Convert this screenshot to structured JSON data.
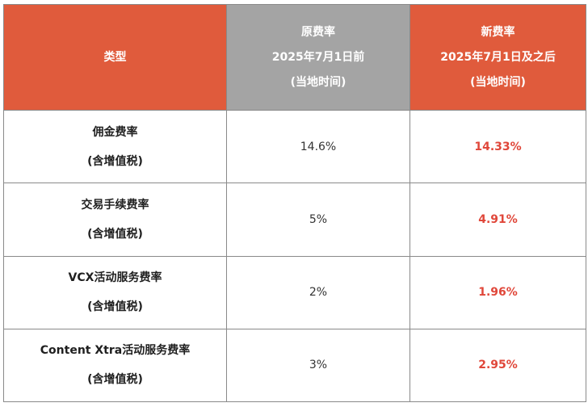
{
  "header": {
    "type_label": "类型",
    "old": {
      "title": "原费率",
      "date": "2025年7月1日前",
      "note": "(当地时间)"
    },
    "new": {
      "title": "新费率",
      "date": "2025年7月1日及之后",
      "note": "(当地时间)"
    }
  },
  "rows": [
    {
      "name": "佣金费率",
      "tax": "(含增值税)",
      "old_rate": "14.6%",
      "new_rate": "14.33%"
    },
    {
      "name": "交易手续费率",
      "tax": "(含增值税)",
      "old_rate": "5%",
      "new_rate": "4.91%"
    },
    {
      "name": "VCX活动服务费率",
      "tax": "(含增值税)",
      "old_rate": "2%",
      "new_rate": "1.96%"
    },
    {
      "name": "Content Xtra活动服务费率",
      "tax": "(含增值税)",
      "old_rate": "3%",
      "new_rate": "2.95%"
    }
  ],
  "colors": {
    "accent": "#e05b3c",
    "old_header": "#a4a4a4",
    "new_value": "#e0473a"
  }
}
